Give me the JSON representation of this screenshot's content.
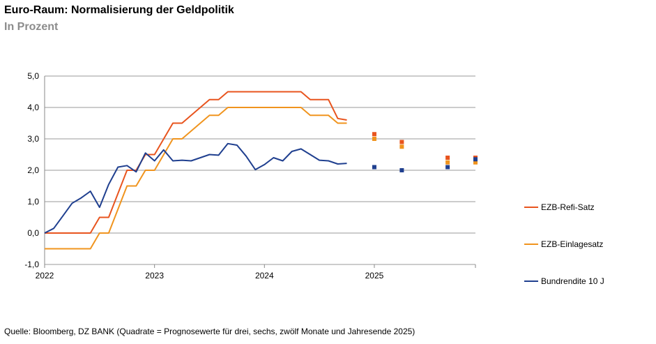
{
  "title": "Euro-Raum: Normalisierung der Geldpolitik",
  "subtitle": "In Prozent",
  "source": "Quelle: Bloomberg, DZ BANK (Quadrate = Prognosewerte für drei, sechs, zwölf Monate und Jahresende 2025)",
  "chart_data": {
    "type": "line",
    "ylim": [
      -1,
      5
    ],
    "yticks": [
      "-1,0",
      "0,0",
      "1,0",
      "2,0",
      "3,0",
      "4,0",
      "5,0"
    ],
    "xlim": [
      2022,
      2025.92
    ],
    "xticks": [
      2022,
      2023,
      2024,
      2025
    ],
    "xtick_labels": [
      "2022",
      "2023",
      "2024",
      "2025"
    ],
    "grid": true,
    "legend_position": "right",
    "series": [
      {
        "name": "EZB-Refi-Satz",
        "color": "#e8541e",
        "x": [
          2022,
          2022.417,
          2022.5,
          2022.583,
          2022.75,
          2022.833,
          2022.917,
          2023.0,
          2023.167,
          2023.25,
          2023.333,
          2023.5,
          2023.583,
          2023.667,
          2023.75,
          2024.0,
          2024.25,
          2024.333,
          2024.417,
          2024.5,
          2024.583,
          2024.667,
          2024.75
        ],
        "y": [
          0,
          0,
          0.5,
          0.5,
          2.0,
          2.0,
          2.5,
          2.5,
          3.5,
          3.5,
          3.75,
          4.25,
          4.25,
          4.5,
          4.5,
          4.5,
          4.5,
          4.5,
          4.25,
          4.25,
          4.25,
          3.65,
          3.6
        ],
        "forecast_x": [
          2025.0,
          2025.25,
          2025.667,
          2025.92
        ],
        "forecast_y": [
          3.15,
          2.9,
          2.4,
          2.4
        ]
      },
      {
        "name": "EZB-Einlagesatz",
        "color": "#f0941e",
        "x": [
          2022,
          2022.417,
          2022.5,
          2022.583,
          2022.75,
          2022.833,
          2022.917,
          2023.0,
          2023.167,
          2023.25,
          2023.333,
          2023.5,
          2023.583,
          2023.667,
          2023.75,
          2024.0,
          2024.25,
          2024.333,
          2024.417,
          2024.5,
          2024.583,
          2024.667,
          2024.75
        ],
        "y": [
          -0.5,
          -0.5,
          0,
          0,
          1.5,
          1.5,
          2.0,
          2.0,
          3.0,
          3.0,
          3.25,
          3.75,
          3.75,
          4.0,
          4.0,
          4.0,
          4.0,
          4.0,
          3.75,
          3.75,
          3.75,
          3.5,
          3.5
        ],
        "forecast_x": [
          2025.0,
          2025.25,
          2025.667,
          2025.92
        ],
        "forecast_y": [
          3.0,
          2.75,
          2.25,
          2.25
        ]
      },
      {
        "name": "Bundrendite 10 J",
        "color": "#1f3f8f",
        "x": [
          2022,
          2022.083,
          2022.167,
          2022.25,
          2022.333,
          2022.417,
          2022.5,
          2022.583,
          2022.667,
          2022.75,
          2022.833,
          2022.917,
          2023.0,
          2023.083,
          2023.167,
          2023.25,
          2023.333,
          2023.417,
          2023.5,
          2023.583,
          2023.667,
          2023.75,
          2023.833,
          2023.917,
          2024.0,
          2024.083,
          2024.167,
          2024.25,
          2024.333,
          2024.417,
          2024.5,
          2024.583,
          2024.667,
          2024.75
        ],
        "y": [
          0,
          0.15,
          0.55,
          0.95,
          1.12,
          1.33,
          0.82,
          1.55,
          2.1,
          2.15,
          1.95,
          2.55,
          2.3,
          2.65,
          2.3,
          2.32,
          2.3,
          2.4,
          2.5,
          2.48,
          2.85,
          2.8,
          2.45,
          2.02,
          2.18,
          2.4,
          2.3,
          2.6,
          2.68,
          2.5,
          2.32,
          2.3,
          2.2,
          2.22
        ],
        "forecast_x": [
          2025.0,
          2025.25,
          2025.667,
          2025.92
        ],
        "forecast_y": [
          2.1,
          2.0,
          2.1,
          2.35
        ]
      }
    ]
  }
}
